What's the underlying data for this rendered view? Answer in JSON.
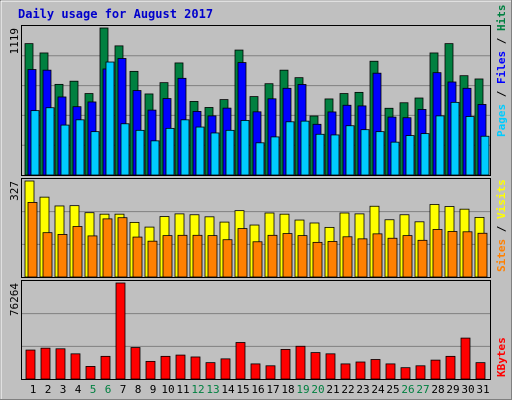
{
  "chart_data": [
    {
      "type": "bar",
      "panel": "hits-files-pages",
      "title": "Daily usage for August 2017",
      "ylabel_max": "1119",
      "ylim": [
        0,
        1119
      ],
      "legend": [
        {
          "name": "Pages",
          "color": "#00ccff"
        },
        {
          "name": "Files",
          "color": "#0000ff"
        },
        {
          "name": "Hits",
          "color": "#008040"
        }
      ],
      "categories": [
        "1",
        "2",
        "3",
        "4",
        "5",
        "6",
        "7",
        "8",
        "9",
        "10",
        "11",
        "12",
        "13",
        "14",
        "15",
        "16",
        "17",
        "18",
        "19",
        "20",
        "21",
        "22",
        "23",
        "24",
        "25",
        "26",
        "27",
        "28",
        "29",
        "30",
        "31"
      ],
      "series": [
        {
          "name": "Hits",
          "color": "#008040",
          "values": [
            1000,
            929,
            690,
            714,
            620,
            1119,
            983,
            789,
            617,
            703,
            853,
            560,
            514,
            574,
            951,
            597,
            695,
            798,
            741,
            449,
            579,
            620,
            629,
            866,
            508,
            550,
            586,
            929,
            1000,
            756,
            731
          ]
        },
        {
          "name": "Files",
          "color": "#0000ff",
          "values": [
            803,
            798,
            594,
            520,
            556,
            807,
            887,
            643,
            494,
            582,
            736,
            484,
            450,
            509,
            856,
            481,
            580,
            660,
            689,
            386,
            480,
            531,
            526,
            775,
            441,
            436,
            499,
            779,
            708,
            660,
            537
          ]
        },
        {
          "name": "Pages",
          "color": "#00ccff",
          "values": [
            490,
            512,
            380,
            420,
            330,
            860,
            390,
            340,
            260,
            355,
            420,
            365,
            320,
            340,
            415,
            245,
            290,
            405,
            410,
            310,
            305,
            375,
            345,
            330,
            250,
            300,
            315,
            450,
            553,
            445,
            295
          ]
        }
      ]
    },
    {
      "type": "bar",
      "panel": "visits-sites",
      "ylabel_max": "327",
      "ylim": [
        0,
        327
      ],
      "legend": [
        {
          "name": "Sites",
          "color": "#ff8000"
        },
        {
          "name": "Visits",
          "color": "#ffff00"
        }
      ],
      "categories": [
        "1",
        "2",
        "3",
        "4",
        "5",
        "6",
        "7",
        "8",
        "9",
        "10",
        "11",
        "12",
        "13",
        "14",
        "15",
        "16",
        "17",
        "18",
        "19",
        "20",
        "21",
        "22",
        "23",
        "24",
        "25",
        "26",
        "27",
        "28",
        "29",
        "30",
        "31"
      ],
      "series": [
        {
          "name": "Visits",
          "color": "#ffff00",
          "values": [
            327,
            272,
            242,
            243,
            219,
            214,
            214,
            186,
            170,
            206,
            215,
            212,
            205,
            187,
            226,
            177,
            218,
            214,
            194,
            184,
            169,
            218,
            215,
            241,
            195,
            212,
            188,
            247,
            240,
            231,
            203
          ]
        },
        {
          "name": "Sites",
          "color": "#ff8000",
          "values": [
            254,
            151,
            145,
            172,
            140,
            198,
            202,
            136,
            122,
            141,
            142,
            142,
            141,
            127,
            165,
            120,
            142,
            148,
            141,
            118,
            121,
            137,
            130,
            147,
            132,
            141,
            125,
            162,
            155,
            154,
            149
          ]
        }
      ]
    },
    {
      "type": "bar",
      "panel": "kbytes",
      "ylabel_max": "76264",
      "ylim": [
        0,
        76264
      ],
      "legend": [
        {
          "name": "KBytes",
          "color": "#ff0000"
        }
      ],
      "categories": [
        "1",
        "2",
        "3",
        "4",
        "5",
        "6",
        "7",
        "8",
        "9",
        "10",
        "11",
        "12",
        "13",
        "14",
        "15",
        "16",
        "17",
        "18",
        "19",
        "20",
        "21",
        "22",
        "23",
        "24",
        "25",
        "26",
        "27",
        "28",
        "29",
        "30",
        "31"
      ],
      "weekend_days": [
        5,
        6,
        12,
        13,
        19,
        20,
        26,
        27
      ],
      "series": [
        {
          "name": "KBytes",
          "color": "#ff0000",
          "values": [
            23000,
            24500,
            24000,
            20000,
            10000,
            18000,
            76264,
            25000,
            14000,
            18000,
            19000,
            17500,
            13000,
            16000,
            29000,
            12000,
            10500,
            23500,
            26000,
            21000,
            20000,
            12000,
            13500,
            15500,
            12000,
            9000,
            10500,
            15000,
            18000,
            32500,
            13000
          ]
        }
      ]
    }
  ]
}
